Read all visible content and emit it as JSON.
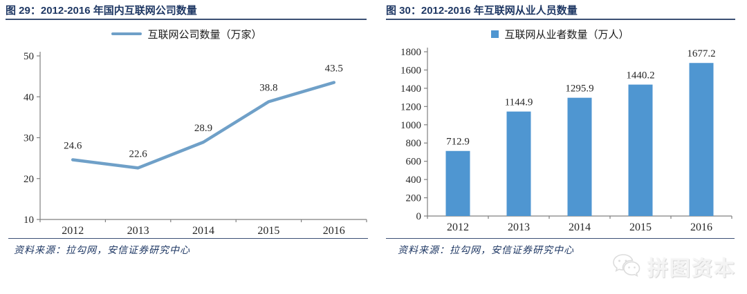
{
  "colors": {
    "title": "#1F3864",
    "rule": "#3A4E73",
    "line": "#6FA0C8",
    "bar": "#4F96D1",
    "axis": "#7F7F7F",
    "text": "#262626",
    "source": "#1F3864",
    "watermark_text": "#f4f4f4"
  },
  "panels": [
    {
      "title": "图 29：2012-2016 年国内互联网公司数量",
      "legend": "互联网公司数量（万家）",
      "source": "资料来源：拉勾网，安信证券研究中心"
    },
    {
      "title": "图 30：2012-2016 年互联网从业人员数量",
      "legend": "互联网从业者数量（万人）",
      "source": "资料来源：拉勾网，安信证券研究中心"
    }
  ],
  "chart_data": [
    {
      "type": "line",
      "title": "图 29：2012-2016 年国内互联网公司数量",
      "categories": [
        "2012",
        "2013",
        "2014",
        "2015",
        "2016"
      ],
      "values": [
        24.6,
        22.6,
        28.9,
        38.8,
        43.5
      ],
      "series_name": "互联网公司数量（万家）",
      "xlabel": "",
      "ylabel": "",
      "ylim": [
        10,
        50
      ],
      "ytick_step": 10,
      "grid": false,
      "legend_position": "top",
      "data_labels": true
    },
    {
      "type": "bar",
      "title": "图 30：2012-2016 年互联网从业人员数量",
      "categories": [
        "2012",
        "2013",
        "2014",
        "2015",
        "2016"
      ],
      "values": [
        712.9,
        1144.9,
        1295.9,
        1440.2,
        1677.2
      ],
      "series_name": "互联网从业者数量（万人）",
      "xlabel": "",
      "ylabel": "",
      "ylim": [
        0,
        1800
      ],
      "ytick_step": 200,
      "grid": false,
      "legend_position": "top",
      "data_labels": true
    }
  ],
  "watermark": {
    "text": "拼图资本",
    "icon": "wechat-icon"
  }
}
